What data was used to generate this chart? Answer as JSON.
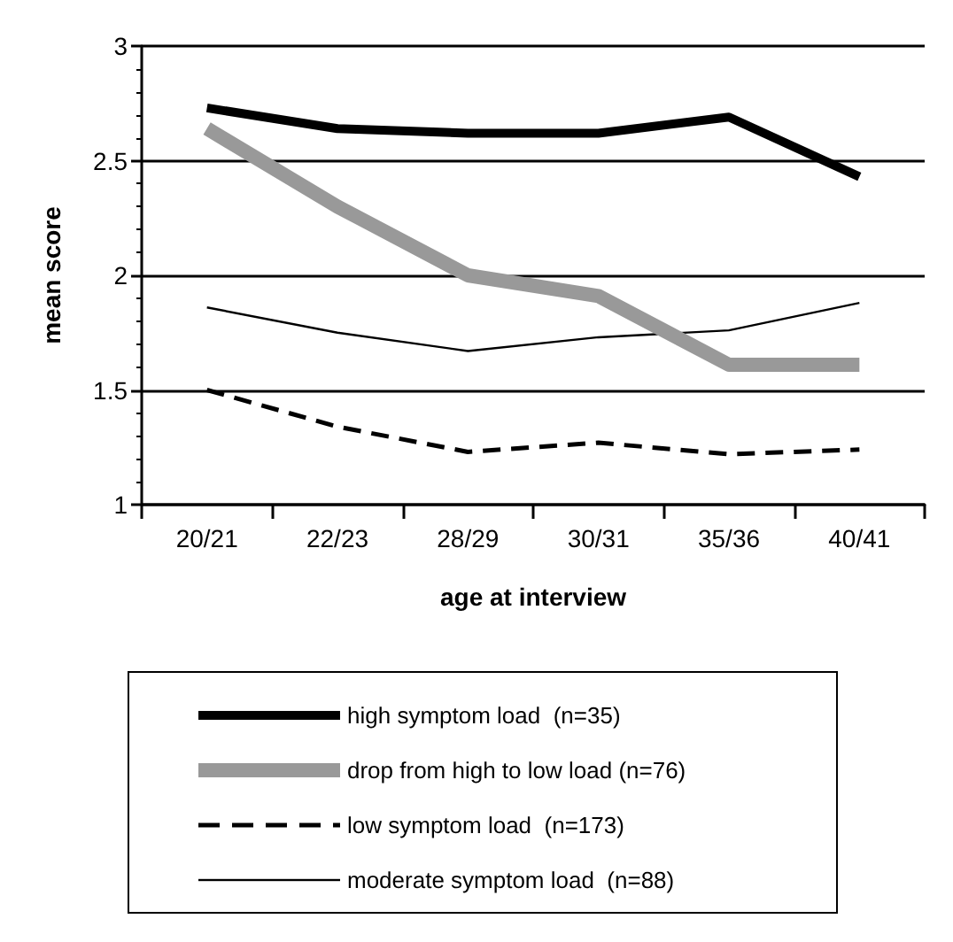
{
  "chart_data": {
    "type": "line",
    "xlabel": "age at interview",
    "ylabel": "mean score",
    "categories": [
      "20/21",
      "22/23",
      "28/29",
      "30/31",
      "35/36",
      "40/41"
    ],
    "series": [
      {
        "name": "high symptom load  (n=35)",
        "color": "#000000",
        "line_style": "solid",
        "values": [
          2.73,
          2.64,
          2.62,
          2.62,
          2.69,
          2.43
        ]
      },
      {
        "name": "drop from high to low load (n=76)",
        "color": "#999999",
        "line_style": "solid",
        "values": [
          2.64,
          2.3,
          2.0,
          1.91,
          1.61,
          1.61
        ]
      },
      {
        "name": "low symptom load  (n=173)",
        "color": "#000000",
        "line_style": "dashed",
        "values": [
          1.5,
          1.34,
          1.23,
          1.27,
          1.22,
          1.24
        ]
      },
      {
        "name": "moderate symptom load  (n=88)",
        "color": "#000000",
        "line_style": "solid",
        "values": [
          1.86,
          1.75,
          1.67,
          1.73,
          1.76,
          1.88
        ]
      }
    ],
    "ylim": [
      1,
      3
    ],
    "yticks": [
      1,
      {
        "value": 1.1,
        "label": null
      },
      {
        "value": 1.2,
        "label": null
      },
      {
        "value": 1.3,
        "label": null
      },
      {
        "value": 1.4,
        "label": null
      },
      1.5,
      {
        "value": 1.6,
        "label": null
      },
      {
        "value": 1.7,
        "label": null
      },
      {
        "value": 1.8,
        "label": null
      },
      {
        "value": 1.9,
        "label": null
      },
      2,
      {
        "value": 2.1,
        "label": null
      },
      {
        "value": 2.2,
        "label": null
      },
      {
        "value": 2.3,
        "label": null
      },
      {
        "value": 2.4,
        "label": null
      },
      2.5,
      {
        "value": 2.6,
        "label": null
      },
      {
        "value": 2.7,
        "label": null
      },
      {
        "value": 2.8,
        "label": null
      },
      {
        "value": 2.9,
        "label": null
      },
      3
    ],
    "grid": "y",
    "legend": "bottom",
    "marker": "none"
  }
}
